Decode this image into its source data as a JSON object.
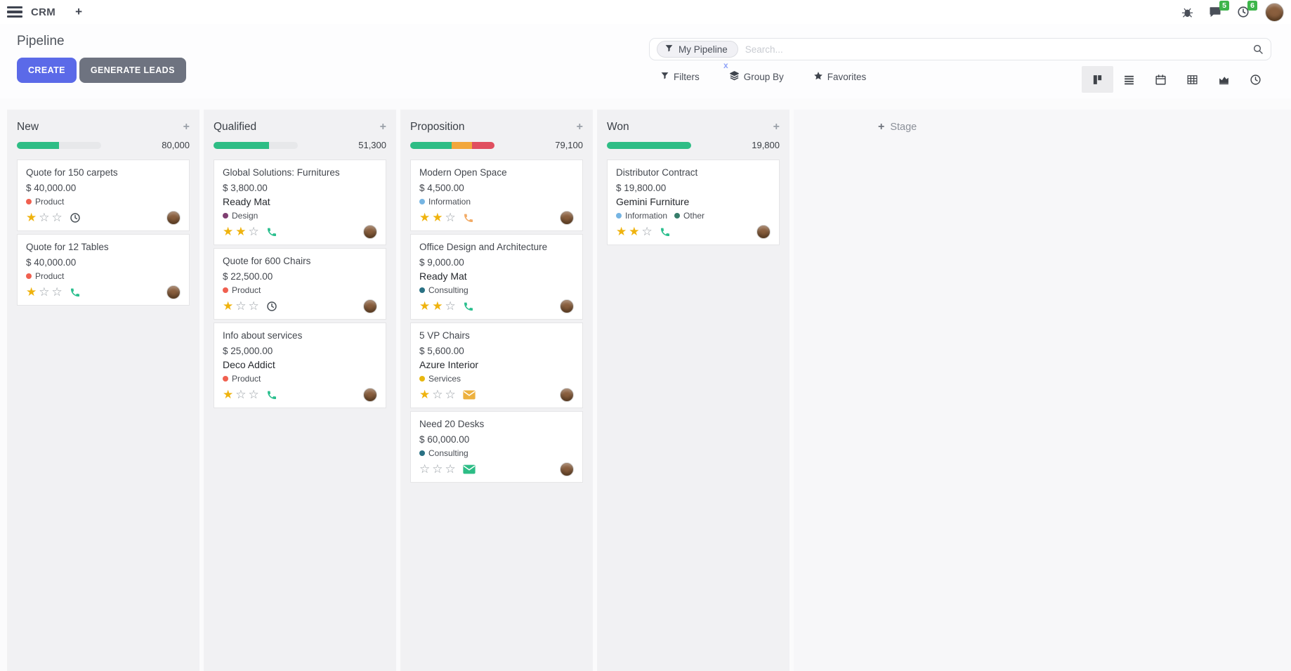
{
  "topbar": {
    "app_name": "CRM",
    "messages_count": "5",
    "activities_count": "6"
  },
  "control_panel": {
    "title": "Pipeline",
    "create_label": "CREATE",
    "generate_label": "GENERATE LEADS",
    "search": {
      "facet": "My Pipeline",
      "placeholder": "Search...",
      "remove_facet": "x"
    },
    "filters_label": "Filters",
    "group_by_label": "Group By",
    "favorites_label": "Favorites",
    "views": [
      "kanban",
      "list",
      "calendar",
      "pivot",
      "graph",
      "activity"
    ],
    "active_view": "kanban"
  },
  "colors": {
    "accent": "#5b6ae8",
    "secondary_btn": "#6e7380",
    "progress_green": "#2ebd85",
    "progress_orange": "#f2a73b",
    "progress_red": "#e04f5f",
    "progress_track": "#e7e8ea",
    "badge_green": "#3db54a",
    "star_gold": "#efb30e"
  },
  "kanban": {
    "add_stage_label": "Stage",
    "columns": [
      {
        "name": "New",
        "amount": "80,000",
        "progress": [
          {
            "color": "#2ebd85",
            "pct": 50
          }
        ],
        "cards": [
          {
            "title": "Quote for 150 carpets",
            "amount": "$ 40,000.00",
            "tags": [
              {
                "label": "Product",
                "color": "#f06050"
              }
            ],
            "stars": 1,
            "action": {
              "type": "clock",
              "color": "#495057"
            }
          },
          {
            "title": "Quote for 12 Tables",
            "amount": "$ 40,000.00",
            "tags": [
              {
                "label": "Product",
                "color": "#f06050"
              }
            ],
            "stars": 1,
            "action": {
              "type": "phone",
              "color": "#2bbf8e"
            }
          }
        ]
      },
      {
        "name": "Qualified",
        "amount": "51,300",
        "progress": [
          {
            "color": "#2ebd85",
            "pct": 66
          }
        ],
        "cards": [
          {
            "title": "Global Solutions: Furnitures",
            "amount": "$ 3,800.00",
            "partner": "Ready Mat",
            "tags": [
              {
                "label": "Design",
                "color": "#7f3f71"
              }
            ],
            "stars": 2,
            "action": {
              "type": "phone",
              "color": "#2bbf8e"
            }
          },
          {
            "title": "Quote for 600 Chairs",
            "amount": "$ 22,500.00",
            "tags": [
              {
                "label": "Product",
                "color": "#f06050"
              }
            ],
            "stars": 1,
            "action": {
              "type": "clock",
              "color": "#495057"
            }
          },
          {
            "title": "Info about services",
            "amount": "$ 25,000.00",
            "partner": "Deco Addict",
            "tags": [
              {
                "label": "Product",
                "color": "#f06050"
              }
            ],
            "stars": 1,
            "action": {
              "type": "phone",
              "color": "#2bbf8e"
            }
          }
        ]
      },
      {
        "name": "Proposition",
        "amount": "79,100",
        "progress": [
          {
            "color": "#2ebd85",
            "pct": 49
          },
          {
            "color": "#f2a73b",
            "pct": 24
          },
          {
            "color": "#e04f5f",
            "pct": 27
          }
        ],
        "cards": [
          {
            "title": "Modern Open Space",
            "amount": "$ 4,500.00",
            "tags": [
              {
                "label": "Information",
                "color": "#76b5e3"
              }
            ],
            "stars": 2,
            "action": {
              "type": "phone",
              "color": "#f2ab66"
            }
          },
          {
            "title": "Office Design and Architecture",
            "amount": "$ 9,000.00",
            "partner": "Ready Mat",
            "tags": [
              {
                "label": "Consulting",
                "color": "#2a7184"
              }
            ],
            "stars": 2,
            "action": {
              "type": "phone",
              "color": "#2bbf8e"
            }
          },
          {
            "title": "5 VP Chairs",
            "amount": "$ 5,600.00",
            "partner": "Azure Interior",
            "tags": [
              {
                "label": "Services",
                "color": "#e8b70f"
              }
            ],
            "stars": 1,
            "action": {
              "type": "envelope",
              "color": "#edb13f"
            }
          },
          {
            "title": "Need 20 Desks",
            "amount": "$ 60,000.00",
            "tags": [
              {
                "label": "Consulting",
                "color": "#2a7184"
              }
            ],
            "stars": 0,
            "action": {
              "type": "envelope",
              "color": "#2dbd86"
            }
          }
        ]
      },
      {
        "name": "Won",
        "amount": "19,800",
        "progress": [
          {
            "color": "#2ebd85",
            "pct": 100
          }
        ],
        "cards": [
          {
            "title": "Distributor Contract",
            "amount": "$ 19,800.00",
            "partner": "Gemini Furniture",
            "tags": [
              {
                "label": "Information",
                "color": "#76b5e3"
              },
              {
                "label": "Other",
                "color": "#377d6a"
              }
            ],
            "stars": 2,
            "action": {
              "type": "phone",
              "color": "#2bbf8e"
            }
          }
        ]
      }
    ]
  }
}
